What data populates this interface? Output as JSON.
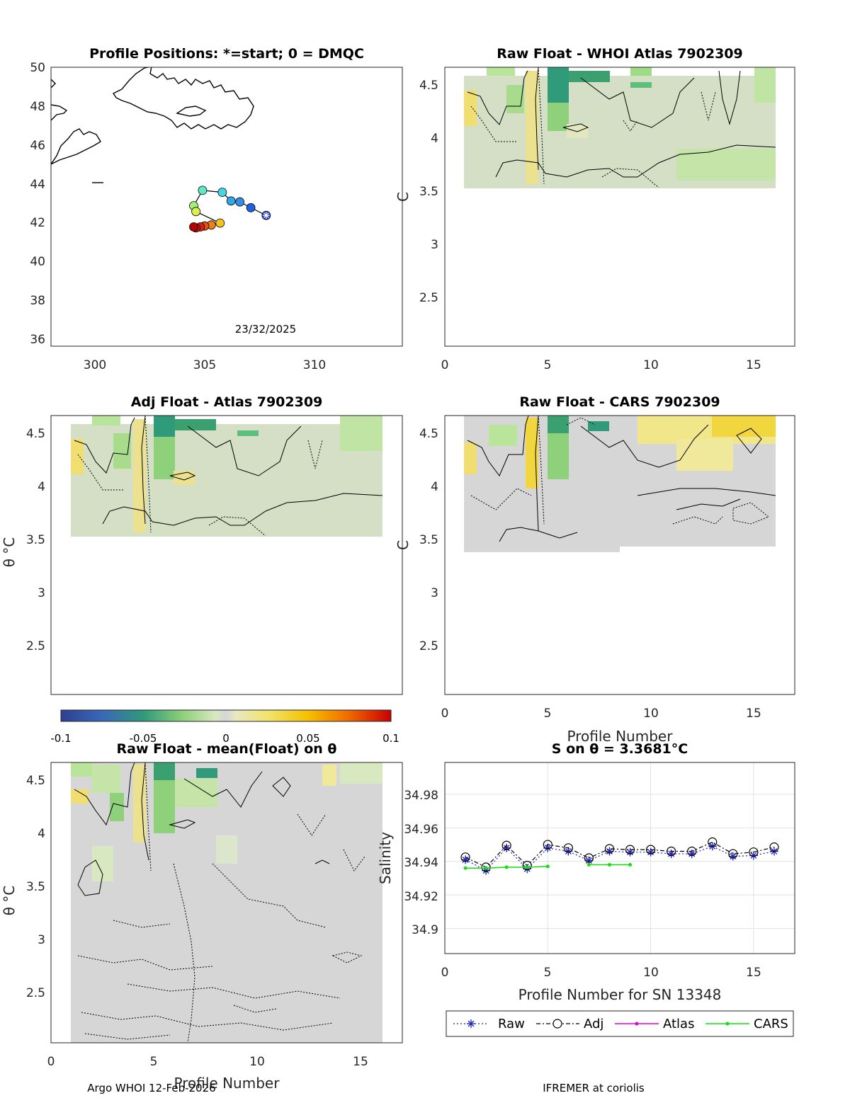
{
  "figure": {
    "footer_left": "Argo WHOI 12-Feb-2026",
    "footer_right": "IFREMER at coriolis"
  },
  "panel_map": {
    "title": "Profile Positions: *=start; 0 = DMQC",
    "date_label": "23/32/2025",
    "xticks": [
      "300",
      "305",
      "310"
    ],
    "yticks": [
      "36",
      "38",
      "40",
      "42",
      "44",
      "46",
      "48",
      "50"
    ]
  },
  "panel_raw_whoi": {
    "title": "Raw Float - WHOI Atlas  7902309",
    "yticks": [
      "2.5",
      "3",
      "3.5",
      "4",
      "4.5"
    ],
    "xticks": [
      "0",
      "5",
      "10",
      "15"
    ],
    "ylabel_fragment": "C"
  },
  "panel_adj_atlas": {
    "title": "Adj Float - Atlas  7902309",
    "yticks": [
      "2.5",
      "3",
      "3.5",
      "4",
      "4.5"
    ],
    "ylabel": "θ °C"
  },
  "panel_raw_cars": {
    "title": "Raw Float - CARS  7902309",
    "yticks": [
      "2.5",
      "3",
      "3.5",
      "4",
      "4.5"
    ],
    "xticks": [
      "0",
      "5",
      "10",
      "15"
    ],
    "xlabel": "Profile Number",
    "ylabel_fragment": "C"
  },
  "colorbar": {
    "ticks": [
      "-0.1",
      "-0.05",
      "0",
      "0.05",
      "0.1"
    ]
  },
  "panel_raw_mean": {
    "title": "Raw Float - mean(Float) on θ",
    "yticks": [
      "2.5",
      "3",
      "3.5",
      "4",
      "4.5"
    ],
    "xticks": [
      "0",
      "5",
      "10",
      "15"
    ],
    "xlabel": "Profile Number",
    "ylabel": "θ °C"
  },
  "panel_salinity": {
    "title": "S on θ = 3.3681°C",
    "xticks": [
      "0",
      "5",
      "10",
      "15"
    ],
    "yticks": [
      "34.9",
      "34.92",
      "34.94",
      "34.96",
      "34.98"
    ],
    "xlabel": "Profile Number for SN 13348",
    "ylabel": "Salinity",
    "legend": {
      "raw": "Raw",
      "adj": "Adj",
      "atlas": "Atlas",
      "cars": "CARS"
    }
  },
  "chart_data": [
    {
      "type": "scatter",
      "name": "profile-positions",
      "title": "Profile Positions: *=start; 0 = DMQC",
      "xlim": [
        298,
        314
      ],
      "ylim": [
        35.5,
        50
      ],
      "points": [
        {
          "lon": 307.8,
          "lat": 42.3,
          "color": "#1f3fd0"
        },
        {
          "lon": 307.1,
          "lat": 42.7,
          "color": "#1f60e0"
        },
        {
          "lon": 306.6,
          "lat": 43.0,
          "color": "#2f8fe8"
        },
        {
          "lon": 306.2,
          "lat": 43.05,
          "color": "#2fa7e8"
        },
        {
          "lon": 305.8,
          "lat": 43.5,
          "color": "#45d6e4"
        },
        {
          "lon": 304.9,
          "lat": 43.6,
          "color": "#5fe8c8"
        },
        {
          "lon": 304.5,
          "lat": 42.8,
          "color": "#a0f07a"
        },
        {
          "lon": 304.6,
          "lat": 42.5,
          "color": "#d8f050"
        },
        {
          "lon": 305.7,
          "lat": 41.9,
          "color": "#f5c020"
        },
        {
          "lon": 305.3,
          "lat": 41.8,
          "color": "#f08018"
        },
        {
          "lon": 305.0,
          "lat": 41.75,
          "color": "#e85010"
        },
        {
          "lon": 304.8,
          "lat": 41.7,
          "color": "#d82010"
        },
        {
          "lon": 304.6,
          "lat": 41.65,
          "color": "#c81010"
        },
        {
          "lon": 304.5,
          "lat": 41.7,
          "color": "#b00000"
        }
      ]
    },
    {
      "type": "line",
      "name": "salinity-on-theta",
      "title": "S on θ = 3.3681°C",
      "xlim": [
        0,
        17
      ],
      "ylim": [
        34.885,
        34.999
      ],
      "xlabel": "Profile Number for SN 13348",
      "ylabel": "Salinity",
      "series": [
        {
          "name": "Raw",
          "x": [
            1,
            2,
            3,
            4,
            5,
            6,
            7,
            8,
            9,
            10,
            11,
            12,
            13,
            14,
            15,
            16
          ],
          "values": [
            34.941,
            34.9345,
            34.948,
            34.9355,
            34.948,
            34.946,
            34.9405,
            34.946,
            34.9455,
            34.9455,
            34.9445,
            34.9445,
            34.949,
            34.943,
            34.9435,
            34.946
          ]
        },
        {
          "name": "Adj",
          "x": [
            1,
            2,
            3,
            4,
            5,
            6,
            7,
            8,
            9,
            10,
            11,
            12,
            13,
            14,
            15,
            16
          ],
          "values": [
            34.9425,
            34.9365,
            34.9495,
            34.9375,
            34.95,
            34.948,
            34.942,
            34.9475,
            34.947,
            34.947,
            34.946,
            34.946,
            34.9515,
            34.9445,
            34.9455,
            34.9485
          ]
        },
        {
          "name": "Atlas",
          "x": [],
          "values": []
        },
        {
          "name": "CARS",
          "x": [
            1,
            2,
            3,
            4,
            5,
            7,
            8,
            9
          ],
          "values": [
            34.936,
            34.936,
            34.9365,
            34.9365,
            34.937,
            34.938,
            34.938,
            34.938
          ]
        }
      ]
    }
  ]
}
